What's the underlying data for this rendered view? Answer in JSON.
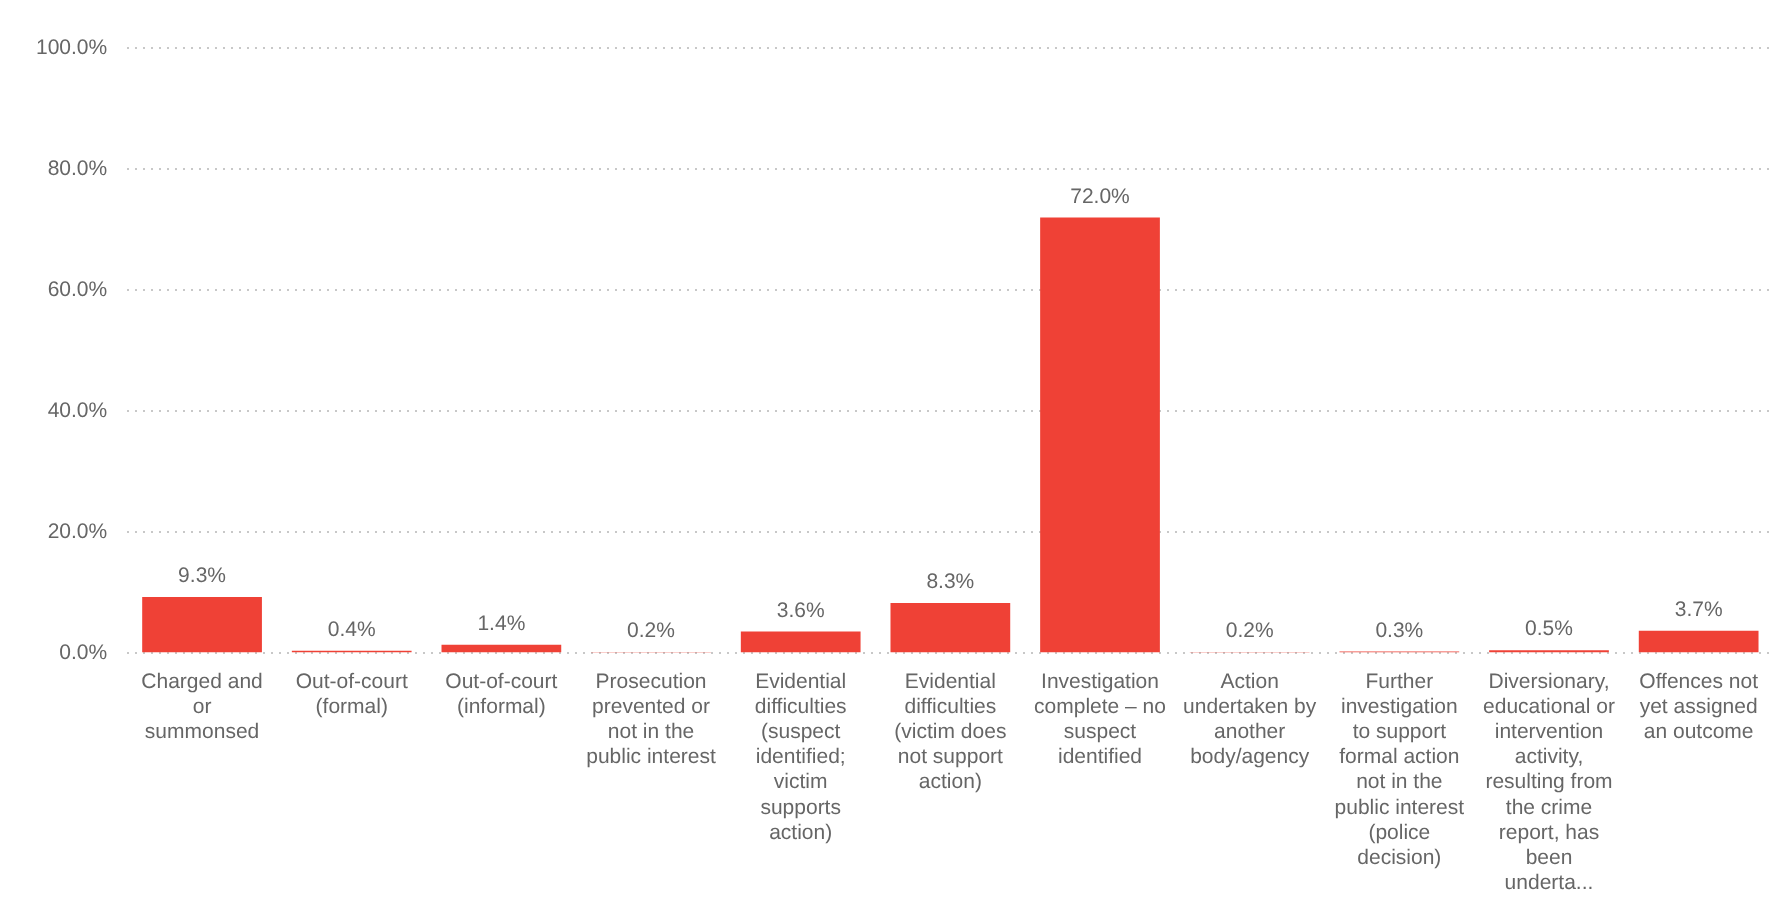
{
  "chart_data": {
    "type": "bar",
    "categories": [
      "Charged and or summonsed",
      "Out-of-court (formal)",
      "Out-of-court (informal)",
      "Prosecution prevented or not in the public interest",
      "Evidential difficulties (suspect identified; victim supports action)",
      "Evidential difficulties (victim does not support action)",
      "Investigation complete – no suspect identified",
      "Action undertaken by another body/agency",
      "Further investigation to support formal action not in the public interest (police decision)",
      "Diversionary, educational or intervention activity, resulting from the crime report, has been underta...",
      "Offences not yet assigned an outcome"
    ],
    "values": [
      9.3,
      0.4,
      1.4,
      0.2,
      3.6,
      8.3,
      72.0,
      0.2,
      0.3,
      0.5,
      3.7
    ],
    "value_labels": [
      "9.3%",
      "0.4%",
      "1.4%",
      "0.2%",
      "3.6%",
      "8.3%",
      "72.0%",
      "0.2%",
      "0.3%",
      "0.5%",
      "3.7%"
    ],
    "color": "#ef4136",
    "ylim": [
      0,
      100
    ],
    "yticks": [
      {
        "value": 0,
        "label": "0.0%"
      },
      {
        "value": 20,
        "label": "20.0%"
      },
      {
        "value": 40,
        "label": "40.0%"
      },
      {
        "value": 60,
        "label": "60.0%"
      },
      {
        "value": 80,
        "label": "80.0%"
      },
      {
        "value": 100,
        "label": "100.0%"
      }
    ],
    "grid": "y"
  }
}
